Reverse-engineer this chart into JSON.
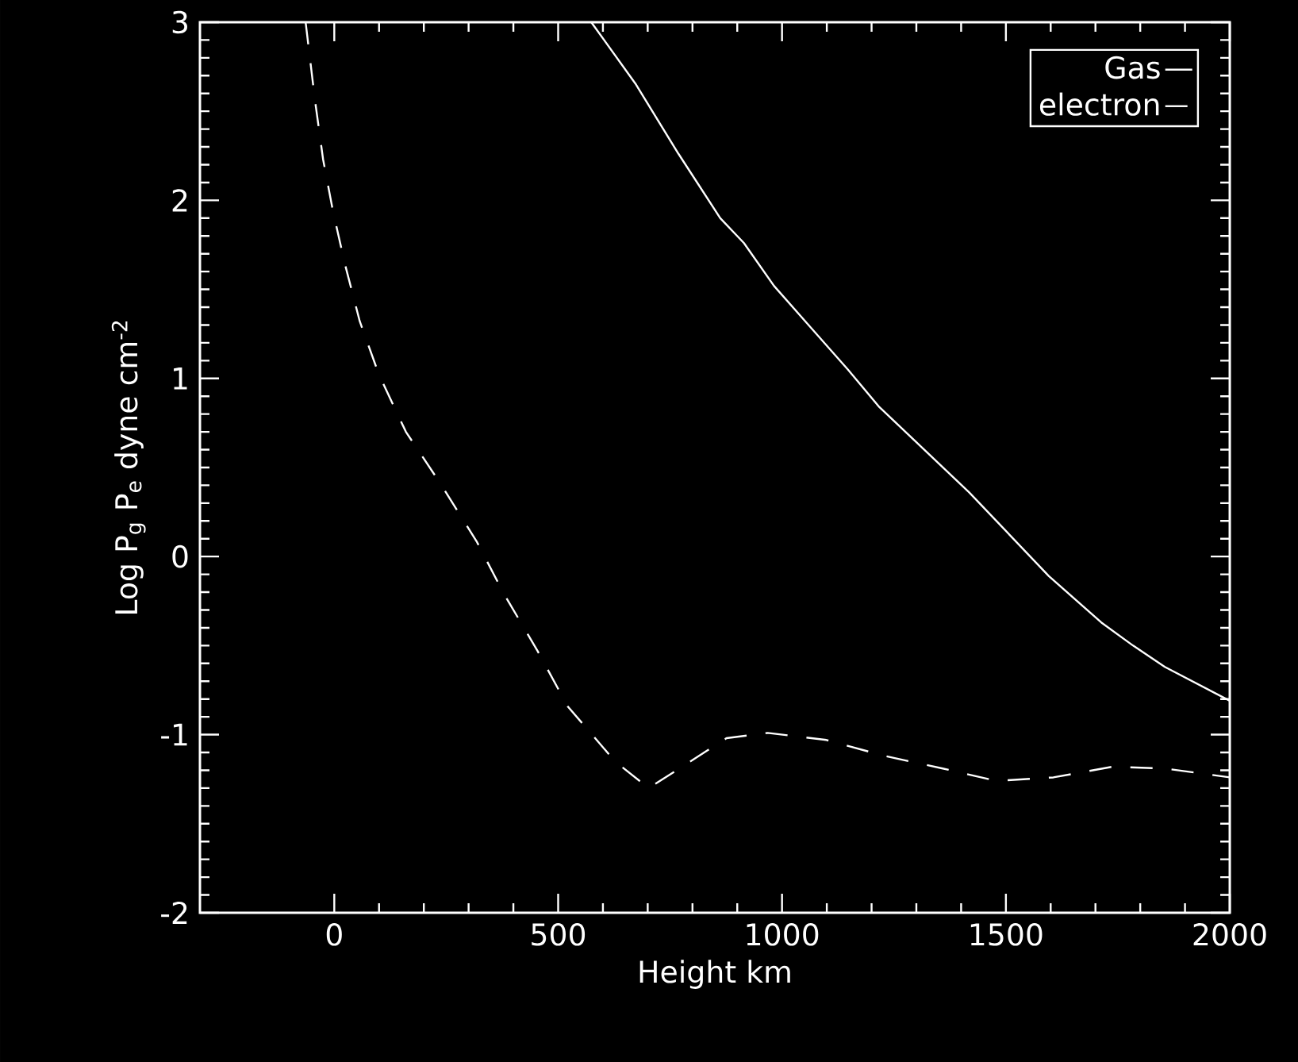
{
  "chart_data": {
    "type": "line",
    "xlabel": "Height km",
    "ylabel": "Log P$_{g}$ P$_{e}$ dyne cm$^{-2}$",
    "xlim": [
      -300,
      2000
    ],
    "ylim": [
      -2,
      3
    ],
    "xticks": [
      0,
      500,
      1000,
      1500,
      2000
    ],
    "yticks": [
      -2,
      -1,
      0,
      1,
      2,
      3
    ],
    "legend": "top right",
    "grid": false,
    "series": [
      {
        "name": "Gas",
        "color": "#ffffff",
        "line_style": "solid",
        "x": [
          574,
          674,
          769,
          862,
          915,
          982,
          1147,
          1217,
          1418,
          1596,
          1713,
          1784,
          1855,
          2000
        ],
        "values": [
          3.0,
          2.65,
          2.26,
          1.9,
          1.76,
          1.52,
          1.05,
          0.84,
          0.36,
          -0.11,
          -0.37,
          -0.5,
          -0.62,
          -0.81
        ]
      },
      {
        "name": "electron",
        "color": "#ffffff",
        "line_style": "dashed",
        "x": [
          -64,
          -43,
          -25,
          -3,
          24,
          57,
          100,
          160,
          237,
          319,
          379,
          454,
          521,
          627,
          702,
          752,
          876,
          968,
          1099,
          1230,
          1359,
          1479,
          1606,
          1738,
          1855,
          2000
        ],
        "values": [
          3.0,
          2.56,
          2.23,
          1.94,
          1.64,
          1.32,
          1.02,
          0.7,
          0.41,
          0.08,
          -0.21,
          -0.53,
          -0.84,
          -1.15,
          -1.3,
          -1.22,
          -1.02,
          -0.99,
          -1.03,
          -1.12,
          -1.19,
          -1.26,
          -1.24,
          -1.18,
          -1.19,
          -1.24
        ]
      }
    ]
  }
}
